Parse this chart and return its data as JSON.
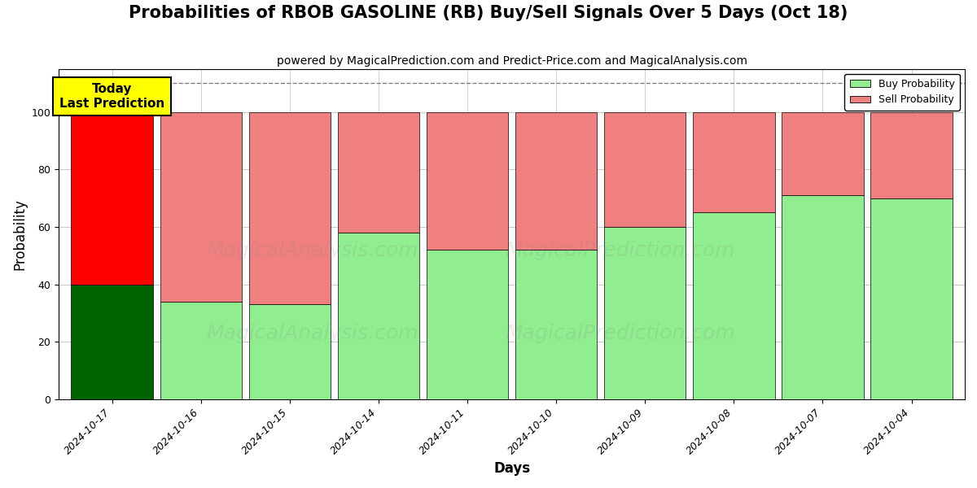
{
  "title": "Probabilities of RBOB GASOLINE (RB) Buy/Sell Signals Over 5 Days (Oct 18)",
  "subtitle": "powered by MagicalPrediction.com and Predict-Price.com and MagicalAnalysis.com",
  "xlabel": "Days",
  "ylabel": "Probability",
  "dates": [
    "2024-10-17",
    "2024-10-16",
    "2024-10-15",
    "2024-10-14",
    "2024-10-11",
    "2024-10-10",
    "2024-10-09",
    "2024-10-08",
    "2024-10-07",
    "2024-10-04"
  ],
  "buy_values": [
    40,
    34,
    33,
    58,
    52,
    52,
    60,
    65,
    71,
    70
  ],
  "sell_values": [
    60,
    66,
    67,
    42,
    48,
    48,
    40,
    35,
    29,
    30
  ],
  "today_buy_color": "#006400",
  "today_sell_color": "#ff0000",
  "buy_color": "#90ee90",
  "sell_color": "#f08080",
  "today_annotation_bg": "#ffff00",
  "today_annotation_text": "Today\nLast Prediction",
  "ylim": [
    0,
    115
  ],
  "yticks": [
    0,
    20,
    40,
    60,
    80,
    100
  ],
  "dashed_line_y": 110,
  "legend_buy_label": "Buy Probability",
  "legend_sell_label": "Sell Probability",
  "bar_width": 0.92,
  "title_fontsize": 15,
  "subtitle_fontsize": 10,
  "axis_label_fontsize": 12,
  "tick_fontsize": 9,
  "watermark1": "MagicalAnalysis.com",
  "watermark2": "MagicalPrediction.com",
  "watermark_fontsize": 18,
  "watermark_alpha": 0.15
}
